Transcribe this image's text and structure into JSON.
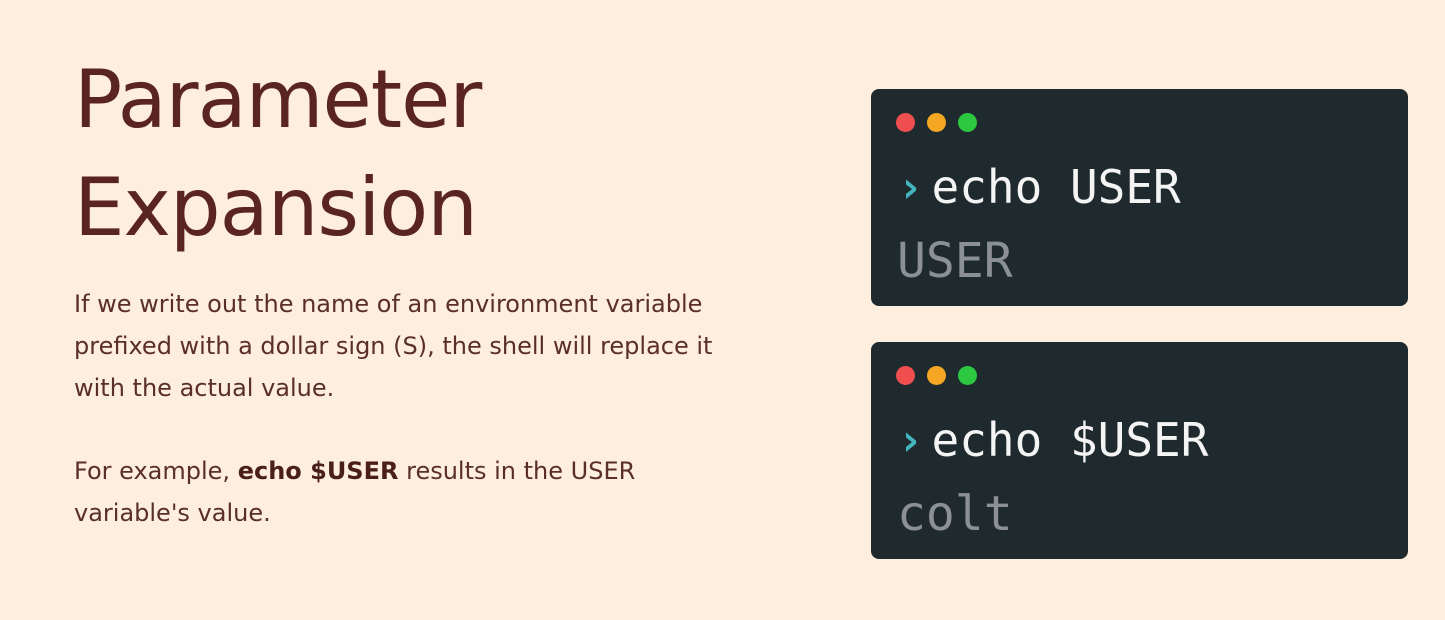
{
  "slide": {
    "title_line1": "Parameter",
    "title_line2": "Expansion",
    "paragraph1": "If we write out the name of an environment variable prefixed with a dollar sign (S), the shell will replace it with the actual value.",
    "paragraph2_prefix": "For example, ",
    "paragraph2_bold": "echo $USER",
    "paragraph2_suffix": " results in the USER variable's value."
  },
  "terminals": [
    {
      "prompt_icon": "›",
      "command": "echo USER",
      "output": "USER"
    },
    {
      "prompt_icon": "›",
      "command": "echo $USER",
      "output": "colt"
    }
  ],
  "colors": {
    "background": "#fdeedd",
    "title": "#5a2520",
    "terminal_bg": "#1f2a2e",
    "prompt": "#43b5bf",
    "dot_red": "#ef4f4f",
    "dot_yellow": "#f5a623",
    "dot_green": "#2bc840"
  }
}
